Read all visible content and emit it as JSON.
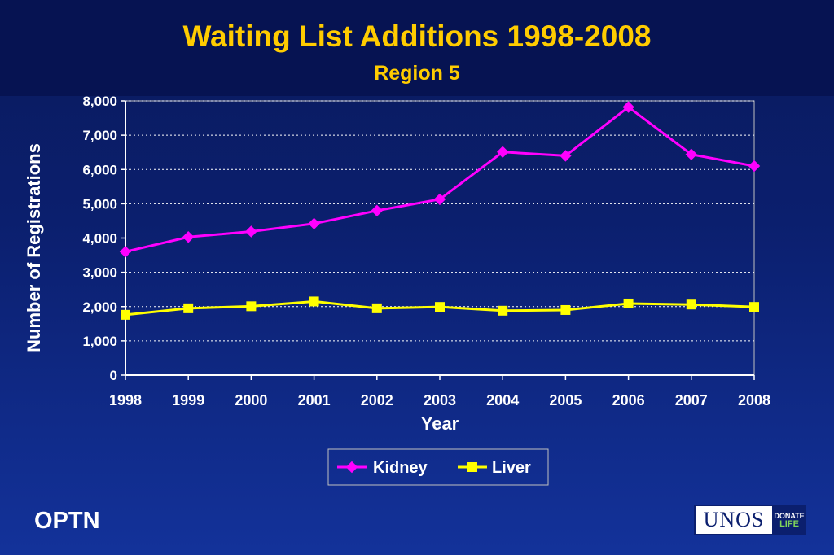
{
  "header": {
    "title": "Waiting List Additions 1998-2008",
    "subtitle": "Region 5"
  },
  "footer": {
    "left_text": "OPTN",
    "logo_main": "UNOS",
    "logo_side_top": "DONATE",
    "logo_side_bottom": "LIFE"
  },
  "colors": {
    "kidney": "#ff00ff",
    "liver": "#ffff00",
    "title": "#ffcc00",
    "grid": "#ffffff"
  },
  "chart_data": {
    "type": "line",
    "title": "Waiting List Additions 1998-2008",
    "subtitle": "Region 5",
    "xlabel": "Year",
    "ylabel": "Number of Registrations",
    "x": [
      "1998",
      "1999",
      "2000",
      "2001",
      "2002",
      "2003",
      "2004",
      "2005",
      "2006",
      "2007",
      "2008"
    ],
    "ylim": [
      0,
      8000
    ],
    "yticks": [
      0,
      1000,
      2000,
      3000,
      4000,
      5000,
      6000,
      7000,
      8000
    ],
    "ytick_labels": [
      "0",
      "1,000",
      "2,000",
      "3,000",
      "4,000",
      "5,000",
      "6,000",
      "7,000",
      "8,000"
    ],
    "grid": "horizontal dotted",
    "legend_position": "bottom",
    "series": [
      {
        "name": "Kidney",
        "marker": "diamond",
        "values": [
          3600,
          4030,
          4190,
          4420,
          4800,
          5130,
          6510,
          6400,
          7820,
          6440,
          6100
        ]
      },
      {
        "name": "Liver",
        "marker": "square",
        "values": [
          1760,
          1950,
          2010,
          2150,
          1950,
          1990,
          1880,
          1900,
          2090,
          2060,
          1990
        ]
      }
    ]
  }
}
